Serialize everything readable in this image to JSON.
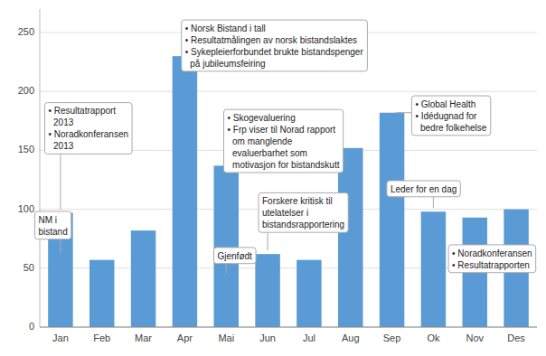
{
  "chart_data": {
    "type": "bar",
    "categories": [
      "Jan",
      "Feb",
      "Mar",
      "Apr",
      "Mai",
      "Jun",
      "Jul",
      "Aug",
      "Sep",
      "Ok",
      "Nov",
      "Des"
    ],
    "values": [
      97,
      57,
      82,
      230,
      137,
      62,
      57,
      152,
      182,
      98,
      93,
      100
    ],
    "color": "#5b9bd5",
    "ylim": [
      0,
      270
    ],
    "yticks": [
      0,
      50,
      100,
      150,
      200,
      250
    ],
    "grid": true,
    "annotations": [
      {
        "text": "• Resultatrapport\n  2013\n• Noradkonferansen\n  2013",
        "x": "Jan",
        "y": 97
      },
      {
        "text": "NM i\nbistand",
        "x": "Jan",
        "y": 60
      },
      {
        "text": "• Norsk Bistand i tall\n• Resultatmålingen av norsk bistandslaktes\n• Sykepleierforbundet brukte bistandspenger\n  på jubileumsfeiring",
        "x": "Apr",
        "y": 230
      },
      {
        "text": "• Skogevaluering\n• Frp viser til Norad rapport\n  om manglende\n  evaluerbarhet som\n  motivasjon for bistandskutt",
        "x": "Mai",
        "y": 137
      },
      {
        "text": "Gjenfødt",
        "x": "Mai",
        "y": 43
      },
      {
        "text": "Forskere kritisk til\nutelatelser i\nbistandsrapportering",
        "x": "Jun",
        "y": 62
      },
      {
        "text": "• Global Health\n• Idédugnad for\n  bedre folkehelse",
        "x": "Sep",
        "y": 182
      },
      {
        "text": "Leder for en dag",
        "x": "Ok",
        "y": 98
      },
      {
        "text": "• Noradkonferansen\n• Resultatrapporten",
        "x": "Nov",
        "y": 45
      }
    ]
  }
}
